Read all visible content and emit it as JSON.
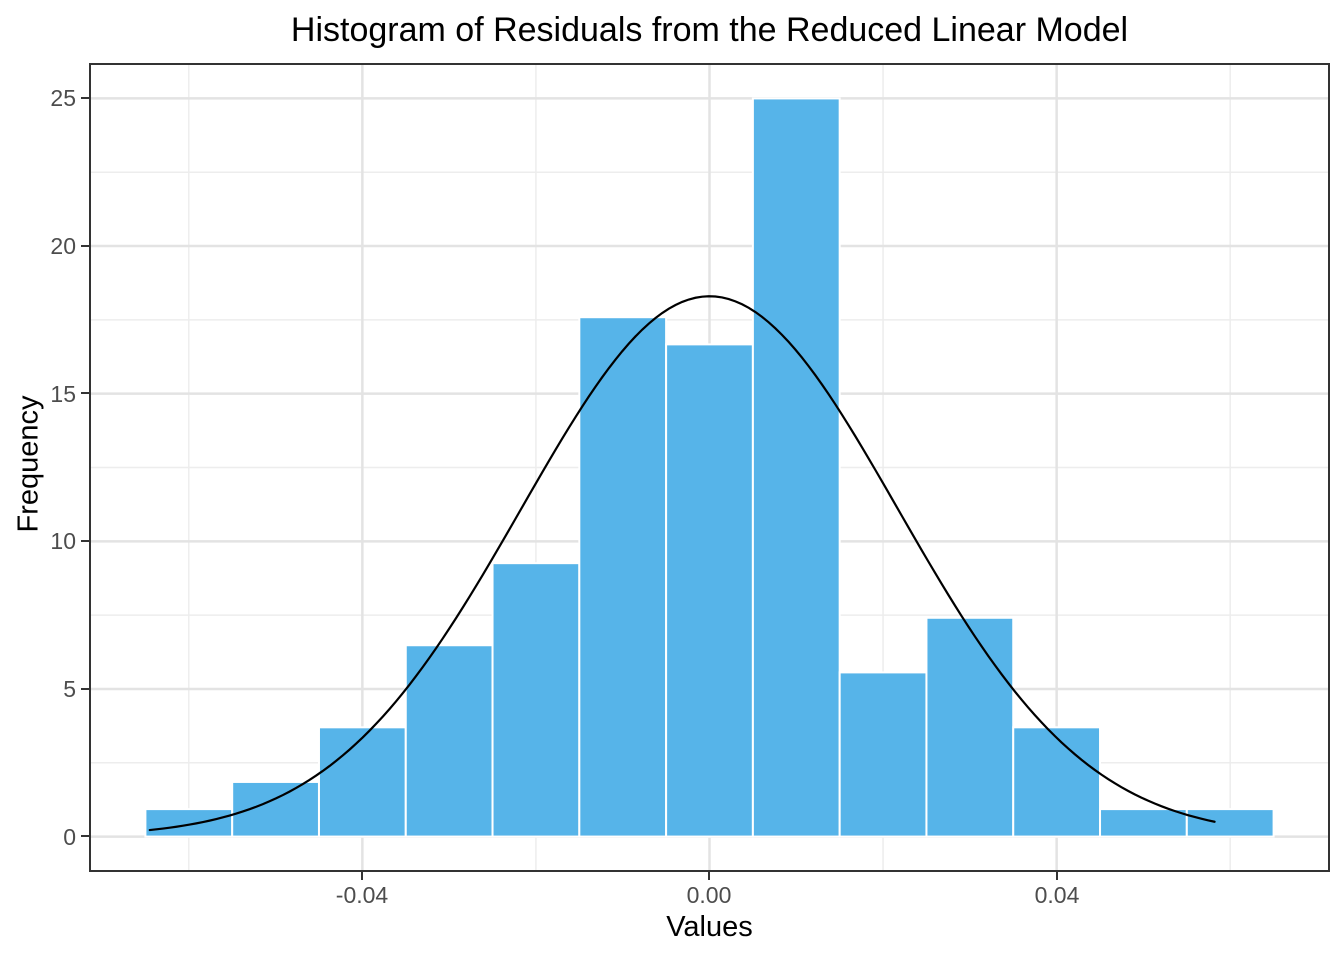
{
  "title": "Histogram of Residuals from the Reduced Linear Model",
  "chart_data": {
    "type": "bar",
    "subtype": "histogram-with-normal-curve",
    "title": "Histogram of Residuals from the Reduced Linear Model",
    "xlabel": "Values",
    "ylabel": "Frequency",
    "bin_width": 0.01,
    "bin_centers": [
      -0.06,
      -0.05,
      -0.04,
      -0.03,
      -0.02,
      -0.01,
      0.0,
      0.01,
      0.02,
      0.03,
      0.04,
      0.05,
      0.06
    ],
    "frequencies": [
      0.93,
      1.85,
      3.7,
      6.48,
      9.26,
      17.59,
      16.67,
      25.0,
      5.56,
      7.41,
      3.7,
      0.93,
      0.93
    ],
    "normal_curve": {
      "peak": 18.3,
      "mean": 0.0,
      "sd": 0.0217,
      "x_start": -0.0645,
      "x_end": 0.0582
    },
    "x_axis": {
      "range": [
        -0.0715,
        0.0715
      ],
      "ticks": [
        {
          "value": -0.04,
          "label": "-0.04"
        },
        {
          "value": 0.0,
          "label": "0.00"
        },
        {
          "value": 0.04,
          "label": "0.04"
        }
      ],
      "minor_gridlines": [
        -0.06,
        -0.02,
        0.02,
        0.06
      ]
    },
    "y_axis": {
      "range": [
        -1.2,
        26.2
      ],
      "ticks": [
        {
          "value": 0,
          "label": "0"
        },
        {
          "value": 5,
          "label": "5"
        },
        {
          "value": 10,
          "label": "10"
        },
        {
          "value": 15,
          "label": "15"
        },
        {
          "value": 20,
          "label": "20"
        },
        {
          "value": 25,
          "label": "25"
        }
      ],
      "minor_gridlines": [
        2.5,
        7.5,
        12.5,
        17.5,
        22.5
      ]
    },
    "grid": true,
    "legend_position": "none"
  },
  "colors": {
    "bar_fill": "#56B4E9",
    "bar_border": "#FFFFFF",
    "curve": "#000000",
    "panel_border": "#333333",
    "grid_major": "#E3E3E3",
    "grid_minor": "#EDEDED",
    "tick_mark": "#333333",
    "tick_label": "#4D4D4D",
    "text": "#000000",
    "background": "#FFFFFF"
  }
}
